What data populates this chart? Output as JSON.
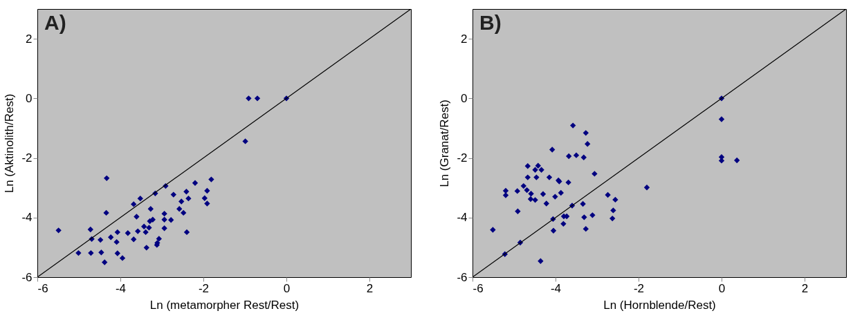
{
  "chart_data": [
    {
      "type": "scatter",
      "title": "A)",
      "xlabel": "Ln (metamorpher Rest/Rest)",
      "ylabel": "Ln (Aktinolith/Rest)",
      "xlim": [
        -6,
        3
      ],
      "ylim": [
        -6,
        3
      ],
      "xticks": [
        -6,
        -4,
        -2,
        0,
        2
      ],
      "yticks": [
        -6,
        -4,
        -2,
        0,
        2
      ],
      "grid": false,
      "series": [
        {
          "type": "scatter",
          "marker": "diamond",
          "color": "#000080",
          "x": [
            -5.49,
            -4.33,
            -4.34,
            -4.72,
            -4.69,
            -4.48,
            -5.01,
            -4.71,
            -4.46,
            -4.38,
            -4.23,
            -4.07,
            -4.09,
            -4.07,
            -3.95,
            -3.82,
            -3.68,
            -3.58,
            -3.61,
            -3.68,
            -3.52,
            -3.43,
            -3.39,
            -3.37,
            -3.31,
            -3.29,
            -3.22,
            -3.27,
            -3.16,
            -2.91,
            -3.07,
            -3.11,
            -3.12,
            -2.94,
            -2.94,
            -2.94,
            -2.78,
            -2.72,
            -2.58,
            -2.53,
            -2.48,
            -2.41,
            -2.36,
            -2.4,
            -2.2,
            -1.97,
            -1.91,
            -1.91,
            -1.81,
            -0.91,
            -0.7,
            0,
            -0.99
          ],
          "values": [
            -4.43,
            -2.68,
            -3.84,
            -4.4,
            -4.72,
            -4.75,
            -5.19,
            -5.19,
            -5.17,
            -5.5,
            -4.66,
            -4.49,
            -4.82,
            -5.2,
            -5.36,
            -4.52,
            -4.73,
            -4.46,
            -3.97,
            -3.55,
            -3.36,
            -4.3,
            -4.49,
            -5.01,
            -4.34,
            -4.12,
            -4.07,
            -3.71,
            -3.19,
            -2.94,
            -4.71,
            -4.85,
            -4.92,
            -3.87,
            -4.07,
            -4.36,
            -4.08,
            -3.23,
            -3.71,
            -3.46,
            -3.84,
            -3.13,
            -3.36,
            -4.49,
            -2.84,
            -3.35,
            -3.1,
            -3.53,
            -2.72,
            0,
            0,
            0,
            -1.44
          ]
        },
        {
          "type": "line",
          "color": "#000000",
          "x": [
            -6,
            3
          ],
          "values": [
            -6,
            3
          ]
        }
      ]
    },
    {
      "type": "scatter",
      "title": "B)",
      "xlabel": "Ln (Hornblende/Rest)",
      "ylabel": "Ln (Granat/Rest)",
      "xlim": [
        -6,
        3
      ],
      "ylim": [
        -6,
        3
      ],
      "xticks": [
        -6,
        -4,
        -2,
        0,
        2
      ],
      "yticks": [
        -6,
        -4,
        -2,
        0,
        2
      ],
      "grid": false,
      "series": [
        {
          "type": "scatter",
          "marker": "diamond",
          "color": "#000080",
          "x": [
            -3.58,
            -3.27,
            -3.23,
            -4.08,
            -3.68,
            -3.5,
            -3.32,
            -4.67,
            -4.42,
            -4.49,
            -4.34,
            -4.67,
            -4.46,
            -4.15,
            -3.06,
            -3.93,
            -3.91,
            -3.69,
            -4.77,
            -4.69,
            -5.2,
            -5.2,
            -4.92,
            -4.59,
            -4.6,
            -4.49,
            -4.3,
            -4.01,
            -3.87,
            -4.22,
            -4.91,
            -5.51,
            -4.06,
            -4.05,
            -3.81,
            -3.8,
            -3.73,
            -3.6,
            -3.34,
            -3.31,
            -3.27,
            -3.11,
            -2.74,
            -2.56,
            -2.61,
            -2.63,
            -4.85,
            -5.22,
            -4.36,
            -1.8,
            0,
            0,
            0,
            0,
            0.37
          ],
          "values": [
            -0.91,
            -1.16,
            -1.53,
            -1.72,
            -1.94,
            -1.91,
            -1.98,
            -2.27,
            -2.26,
            -2.4,
            -2.4,
            -2.65,
            -2.65,
            -2.65,
            -2.53,
            -2.75,
            -2.79,
            -2.82,
            -2.94,
            -3.08,
            -3.1,
            -3.25,
            -3.11,
            -3.2,
            -3.38,
            -3.41,
            -3.21,
            -3.3,
            -3.17,
            -3.53,
            -3.79,
            -4.41,
            -4.05,
            -4.44,
            -4.21,
            -3.96,
            -3.96,
            -3.6,
            -3.54,
            -3.99,
            -4.38,
            -3.92,
            -3.24,
            -3.4,
            -3.76,
            -4.03,
            -4.84,
            -5.23,
            -5.46,
            -2.99,
            0,
            -0.7,
            -1.97,
            -2.09,
            -2.08
          ]
        },
        {
          "type": "line",
          "color": "#000000",
          "x": [
            -6,
            3
          ],
          "values": [
            -6,
            3
          ]
        }
      ]
    }
  ]
}
